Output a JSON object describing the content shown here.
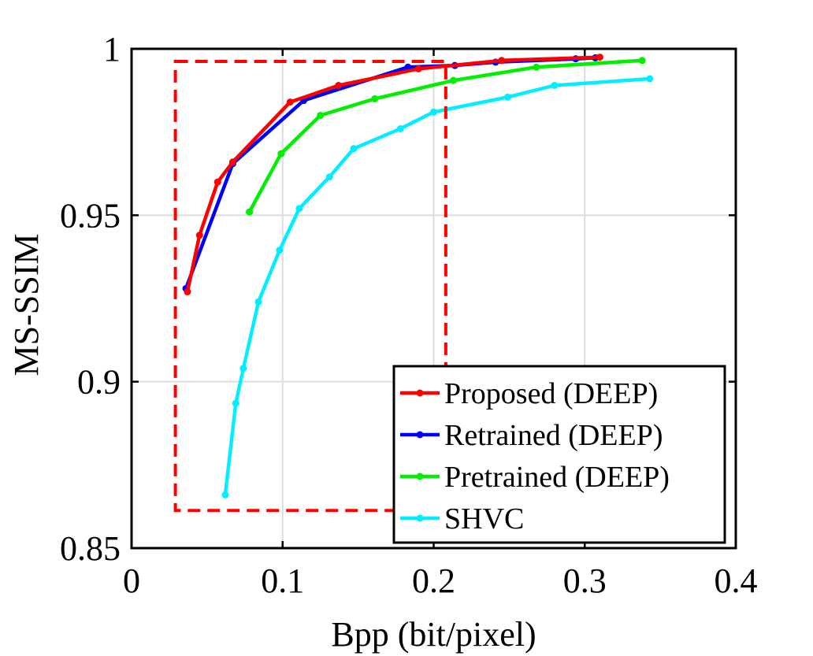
{
  "chart_data": {
    "type": "line",
    "title": "",
    "xlabel": "Bpp (bit/pixel)",
    "ylabel": "MS-SSIM",
    "xlim": [
      0,
      0.4
    ],
    "ylim": [
      0.85,
      1.0
    ],
    "xticks": [
      0,
      0.1,
      0.2,
      0.3,
      0.4
    ],
    "xtick_labels": [
      "0",
      "0.1",
      "0.2",
      "0.3",
      "0.4"
    ],
    "yticks": [
      0.85,
      0.9,
      0.95,
      1.0
    ],
    "ytick_labels": [
      "0.85",
      "0.9",
      "0.95",
      "1"
    ],
    "grid": true,
    "legend_position": "bottom-right",
    "series": [
      {
        "name": "Proposed (DEEP)",
        "color": "#ff0000",
        "x": [
          0.037,
          0.045,
          0.057,
          0.067,
          0.105,
          0.137,
          0.19,
          0.245,
          0.31
        ],
        "y": [
          0.927,
          0.944,
          0.96,
          0.966,
          0.984,
          0.989,
          0.994,
          0.9965,
          0.9975
        ]
      },
      {
        "name": "Retrained (DEEP)",
        "color": "#0000ff",
        "x": [
          0.036,
          0.067,
          0.114,
          0.183,
          0.214,
          0.241,
          0.294,
          0.307
        ],
        "y": [
          0.928,
          0.9655,
          0.9845,
          0.9945,
          0.995,
          0.996,
          0.997,
          0.9973
        ]
      },
      {
        "name": "Pretrained (DEEP)",
        "color": "#00ee00",
        "x": [
          0.078,
          0.099,
          0.125,
          0.161,
          0.213,
          0.268,
          0.338
        ],
        "y": [
          0.951,
          0.9685,
          0.98,
          0.985,
          0.9905,
          0.9945,
          0.9965
        ]
      },
      {
        "name": "SHVC",
        "color": "#00eeff",
        "x": [
          0.062,
          0.069,
          0.074,
          0.084,
          0.098,
          0.111,
          0.131,
          0.147,
          0.178,
          0.2,
          0.249,
          0.28,
          0.343
        ],
        "y": [
          0.866,
          0.8935,
          0.904,
          0.924,
          0.9395,
          0.952,
          0.9615,
          0.97,
          0.976,
          0.981,
          0.9855,
          0.989,
          0.991
        ]
      }
    ],
    "annotations": [
      {
        "type": "dashed-rectangle",
        "color": "#ff0000",
        "x_range": [
          0.029,
          0.208
        ],
        "y_range": [
          0.8613,
          0.9962
        ]
      }
    ]
  }
}
